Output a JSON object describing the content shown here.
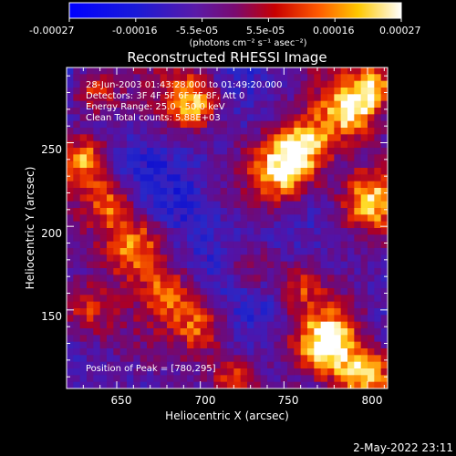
{
  "colorbar": {
    "ticks": [
      "-0.00027",
      "-0.00016",
      "-5.5e-05",
      "5.5e-05",
      "0.00016",
      "0.00027"
    ],
    "unit_label": "(photons cm⁻² s⁻¹ asec⁻²)",
    "vmin": -0.00027,
    "vmax": 0.00027
  },
  "annotations": {
    "time_range": "28-Jun-2003 01:43:28.000 to 01:49:20.000",
    "detectors": "Detectors: 3F 4F 5F 6F 7F 8F, Att 0",
    "energy_range": "Energy Range: 25.0 - 50.0 keV",
    "clean": "Clean     Total counts: 5.88E+03",
    "peak": "Position of Peak = [780,295]"
  },
  "footer": {
    "date": "2-May-2022 23:11"
  },
  "chart_data": {
    "type": "heatmap",
    "title": "Reconstructed RHESSI Image",
    "xlabel": "Heliocentric X (arcsec)",
    "ylabel": "Heliocentric Y (arcsec)",
    "xlim": [
      620,
      812
    ],
    "ylim": [
      103,
      295
    ],
    "xticks": [
      650,
      700,
      750,
      800
    ],
    "yticks": [
      150,
      200,
      250
    ],
    "colormap": "RHESSI blue-purple-red-yellow-white (diverging)",
    "peak_position": [
      780,
      295
    ],
    "bright_regions_approx": [
      {
        "x": 750,
        "y": 235,
        "level": "high"
      },
      {
        "x": 695,
        "y": 275,
        "level": "high"
      },
      {
        "x": 790,
        "y": 270,
        "level": "high"
      },
      {
        "x": 800,
        "y": 215,
        "level": "high"
      },
      {
        "x": 660,
        "y": 190,
        "level": "high"
      },
      {
        "x": 700,
        "y": 140,
        "level": "medium"
      },
      {
        "x": 775,
        "y": 130,
        "level": "high"
      },
      {
        "x": 800,
        "y": 110,
        "level": "high"
      },
      {
        "x": 630,
        "y": 240,
        "level": "medium"
      }
    ]
  }
}
